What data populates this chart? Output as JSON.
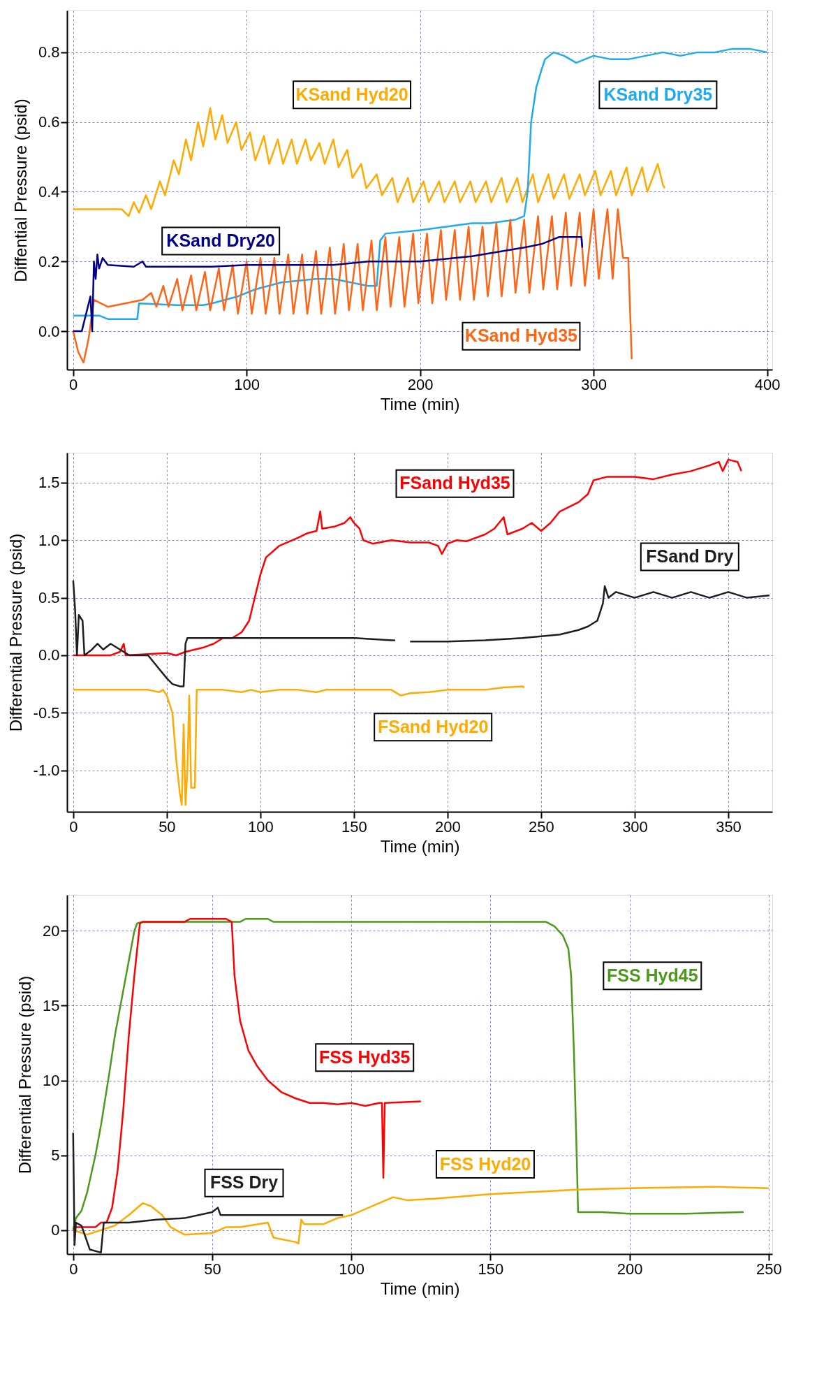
{
  "chart_data": [
    {
      "type": "line",
      "xlabel": "Time (min)",
      "ylabel": "Diffential Pressure (psid)",
      "xlim": [
        -3.5,
        403
      ],
      "xticks": [
        0,
        100,
        200,
        300,
        400
      ],
      "ylim": [
        -0.11,
        0.92
      ],
      "yticks": [
        {
          "value": 0,
          "label": "0.0"
        },
        0.2,
        0.4,
        0.6,
        0.8
      ],
      "grid": true,
      "series": [
        {
          "name": "KSand Hyd20",
          "color": "#ffaa00",
          "x": [
            0,
            10,
            20,
            28,
            32,
            35,
            38,
            42,
            45,
            50,
            53,
            58,
            61,
            65,
            68,
            72,
            75,
            79,
            82,
            86,
            89,
            94,
            97,
            102,
            105,
            110,
            113,
            118,
            121,
            126,
            129,
            134,
            137,
            142,
            145,
            150,
            153,
            158,
            161,
            166,
            169,
            175,
            178,
            184,
            187,
            193,
            196,
            202,
            205,
            211,
            214,
            220,
            223,
            229,
            232,
            238,
            241,
            247,
            250,
            256,
            259,
            265,
            268,
            274,
            277,
            283,
            286,
            292,
            295,
            301,
            304,
            310,
            313,
            319,
            322,
            328,
            331,
            337,
            340,
            341
          ],
          "values": [
            0.35,
            0.35,
            0.35,
            0.35,
            0.33,
            0.37,
            0.34,
            0.39,
            0.35,
            0.43,
            0.39,
            0.49,
            0.45,
            0.55,
            0.49,
            0.6,
            0.53,
            0.64,
            0.55,
            0.62,
            0.54,
            0.6,
            0.52,
            0.57,
            0.49,
            0.56,
            0.48,
            0.55,
            0.48,
            0.55,
            0.48,
            0.55,
            0.49,
            0.54,
            0.48,
            0.55,
            0.47,
            0.52,
            0.44,
            0.48,
            0.41,
            0.45,
            0.39,
            0.44,
            0.37,
            0.44,
            0.37,
            0.43,
            0.37,
            0.43,
            0.37,
            0.43,
            0.37,
            0.43,
            0.37,
            0.43,
            0.37,
            0.44,
            0.37,
            0.44,
            0.37,
            0.45,
            0.37,
            0.45,
            0.38,
            0.45,
            0.38,
            0.45,
            0.39,
            0.46,
            0.39,
            0.46,
            0.39,
            0.47,
            0.39,
            0.47,
            0.4,
            0.48,
            0.42,
            0.41
          ]
        },
        {
          "name": "KSand Dry35",
          "color": "#1eaaf0",
          "x": [
            0,
            15,
            20,
            37,
            38,
            60,
            75,
            80,
            95,
            105,
            120,
            140,
            150,
            170,
            175,
            177,
            180,
            200,
            230,
            240,
            255,
            260,
            262,
            264,
            267,
            270,
            272,
            277,
            283,
            290,
            300,
            310,
            320,
            330,
            340,
            350,
            360,
            370,
            380,
            390,
            400
          ],
          "values": [
            0.045,
            0.045,
            0.035,
            0.035,
            0.08,
            0.075,
            0.075,
            0.08,
            0.1,
            0.12,
            0.14,
            0.15,
            0.15,
            0.13,
            0.13,
            0.26,
            0.28,
            0.29,
            0.31,
            0.31,
            0.32,
            0.33,
            0.4,
            0.6,
            0.7,
            0.75,
            0.78,
            0.8,
            0.79,
            0.77,
            0.79,
            0.78,
            0.78,
            0.79,
            0.8,
            0.79,
            0.8,
            0.8,
            0.81,
            0.81,
            0.8
          ]
        },
        {
          "name": "KSand Hyd35",
          "color": "#ff6414",
          "x": [
            0,
            3,
            6,
            9,
            12,
            20,
            30,
            40,
            45,
            48,
            52,
            55,
            60,
            63,
            68,
            71,
            76,
            79,
            84,
            87,
            92,
            95,
            100,
            103,
            108,
            111,
            116,
            119,
            124,
            127,
            132,
            135,
            140,
            143,
            148,
            151,
            156,
            159,
            164,
            167,
            172,
            175,
            180,
            183,
            188,
            191,
            196,
            199,
            204,
            207,
            212,
            215,
            220,
            223,
            228,
            231,
            236,
            239,
            244,
            247,
            252,
            255,
            260,
            263,
            268,
            271,
            276,
            279,
            284,
            287,
            292,
            295,
            300,
            303,
            308,
            311,
            314,
            317,
            320,
            322
          ],
          "values": [
            0,
            -0.06,
            -0.09,
            -0.02,
            0.09,
            0.07,
            0.08,
            0.09,
            0.11,
            0.07,
            0.13,
            0.07,
            0.15,
            0.06,
            0.16,
            0.06,
            0.17,
            0.06,
            0.18,
            0.06,
            0.19,
            0.05,
            0.2,
            0.05,
            0.21,
            0.05,
            0.21,
            0.05,
            0.22,
            0.05,
            0.22,
            0.05,
            0.23,
            0.05,
            0.24,
            0.05,
            0.25,
            0.06,
            0.25,
            0.06,
            0.26,
            0.06,
            0.27,
            0.07,
            0.27,
            0.07,
            0.28,
            0.08,
            0.28,
            0.08,
            0.29,
            0.09,
            0.29,
            0.09,
            0.3,
            0.09,
            0.3,
            0.1,
            0.31,
            0.1,
            0.32,
            0.11,
            0.32,
            0.11,
            0.33,
            0.12,
            0.33,
            0.12,
            0.34,
            0.13,
            0.34,
            0.13,
            0.35,
            0.15,
            0.35,
            0.15,
            0.35,
            0.21,
            0.21,
            -0.08
          ]
        },
        {
          "name": "KSand Dry20",
          "color": "#00008b",
          "x": [
            0,
            5,
            8,
            10,
            11,
            12,
            13,
            14,
            15,
            17,
            20,
            35,
            40,
            42,
            80,
            100,
            150,
            170,
            200,
            230,
            260,
            270,
            280,
            293,
            293.5
          ],
          "values": [
            0,
            0,
            0.06,
            0.1,
            0,
            0.2,
            0.15,
            0.22,
            0.18,
            0.21,
            0.19,
            0.185,
            0.2,
            0.185,
            0.185,
            0.19,
            0.19,
            0.2,
            0.2,
            0.215,
            0.24,
            0.25,
            0.27,
            0.27,
            0.24
          ]
        }
      ]
    },
    {
      "type": "line",
      "xlabel": "Time (min)",
      "ylabel": "Differential Pressure (psid)",
      "xlim": [
        -3.3,
        373.5
      ],
      "xticks": [
        0,
        50,
        100,
        150,
        200,
        250,
        300,
        350
      ],
      "ylim": [
        -1.36,
        1.76
      ],
      "yticks": [
        {
          "value": -1,
          "label": "-1.0"
        },
        -0.5,
        {
          "value": 0,
          "label": "0.0"
        },
        0.5,
        {
          "value": 1,
          "label": "1.0"
        },
        1.5
      ],
      "grid": true,
      "series": [
        {
          "name": "FSand Hyd35",
          "color": "#ff0000",
          "x": [
            0,
            20,
            25,
            27,
            28,
            40,
            50,
            55,
            60,
            65,
            70,
            75,
            80,
            85,
            90,
            94,
            97,
            100,
            103,
            110,
            120,
            125,
            130,
            132,
            133,
            140,
            145,
            148,
            150,
            153,
            155,
            160,
            170,
            180,
            190,
            195,
            197,
            200,
            205,
            210,
            220,
            225,
            230,
            232,
            240,
            245,
            250,
            255,
            260,
            270,
            275,
            278,
            285,
            290,
            300,
            310,
            320,
            330,
            340,
            345,
            347,
            350,
            355,
            357
          ],
          "values": [
            0,
            0,
            0.03,
            0.1,
            0,
            0.01,
            0.02,
            0,
            0.03,
            0.05,
            0.07,
            0.1,
            0.15,
            0.15,
            0.2,
            0.3,
            0.5,
            0.7,
            0.85,
            0.95,
            1.02,
            1.06,
            1.08,
            1.25,
            1.1,
            1.12,
            1.15,
            1.2,
            1.15,
            1.1,
            1.0,
            0.97,
            1.0,
            0.98,
            0.98,
            0.95,
            0.88,
            0.97,
            1.0,
            0.99,
            1.05,
            1.1,
            1.2,
            1.05,
            1.1,
            1.15,
            1.08,
            1.15,
            1.25,
            1.33,
            1.4,
            1.52,
            1.55,
            1.55,
            1.55,
            1.53,
            1.57,
            1.6,
            1.65,
            1.68,
            1.6,
            1.7,
            1.68,
            1.6
          ]
        },
        {
          "name": "FSand Dry",
          "color": "#1e1e1e",
          "x": [
            0,
            1,
            2,
            3,
            5,
            6,
            10,
            13,
            16,
            20,
            25,
            30,
            40,
            45,
            50,
            53,
            57,
            59,
            60,
            61,
            100,
            150,
            170,
            172,
            176,
            180,
            200,
            220,
            240,
            260,
            270,
            275,
            280,
            283,
            284,
            286,
            290,
            300,
            310,
            320,
            330,
            340,
            350,
            360,
            372
          ],
          "values": [
            0.65,
            0.4,
            0,
            0.35,
            0.3,
            0,
            0.05,
            0.1,
            0.05,
            0.1,
            0.05,
            0,
            0,
            -0.1,
            -0.2,
            -0.25,
            -0.27,
            -0.27,
            0.1,
            0.15,
            0.15,
            0.15,
            0.13,
            0.13,
            null,
            0.12,
            0.12,
            0.13,
            0.15,
            0.18,
            0.22,
            0.25,
            0.3,
            0.45,
            0.6,
            0.5,
            0.55,
            0.5,
            0.55,
            0.5,
            0.55,
            0.5,
            0.55,
            0.5,
            0.52
          ]
        },
        {
          "name": "FSand Hyd20",
          "color": "#ffaa00",
          "x": [
            0,
            25,
            30,
            40,
            46,
            48,
            50,
            53,
            55,
            57,
            58,
            59,
            60,
            61,
            62,
            63,
            65,
            66,
            70,
            80,
            90,
            95,
            100,
            110,
            120,
            130,
            135,
            140,
            150,
            160,
            170,
            175,
            180,
            190,
            200,
            210,
            220,
            230,
            240,
            241
          ],
          "values": [
            -0.3,
            -0.3,
            -0.3,
            -0.3,
            -0.32,
            -0.3,
            -0.35,
            -0.5,
            -0.9,
            -1.2,
            -1.3,
            -0.6,
            -1.3,
            -1.0,
            -0.35,
            -1.15,
            -1.15,
            -0.3,
            -0.3,
            -0.3,
            -0.32,
            -0.3,
            -0.32,
            -0.3,
            -0.3,
            -0.32,
            -0.3,
            -0.3,
            -0.3,
            -0.3,
            -0.3,
            -0.35,
            -0.33,
            -0.32,
            -0.3,
            -0.3,
            -0.3,
            -0.28,
            -0.27,
            -0.28
          ]
        }
      ]
    },
    {
      "type": "line",
      "xlabel": "Time (min)",
      "ylabel": "Differential Pressure (psid)",
      "xlim": [
        -2.2,
        251.3
      ],
      "xticks": [
        0,
        50,
        100,
        150,
        200,
        250
      ],
      "ylim": [
        -1.6,
        22.4
      ],
      "yticks": [
        0,
        5,
        10,
        15,
        20
      ],
      "grid": true,
      "series": [
        {
          "name": "FSS Hyd45",
          "color": "#4c9a1a",
          "x": [
            0,
            1,
            3,
            5,
            8,
            10,
            13,
            15,
            18,
            20,
            22,
            23,
            25,
            50,
            60,
            62,
            70,
            72,
            100,
            150,
            170,
            173,
            176,
            178,
            179,
            180,
            181,
            181.5,
            190,
            200,
            220,
            240,
            241
          ],
          "values": [
            0,
            0.8,
            1.3,
            2.5,
            5,
            7,
            10.5,
            13,
            16,
            18,
            20,
            20.5,
            20.6,
            20.6,
            20.6,
            20.8,
            20.8,
            20.6,
            20.6,
            20.6,
            20.6,
            20.3,
            19.7,
            18.8,
            17,
            12,
            5,
            1.2,
            1.2,
            1.1,
            1.1,
            1.2,
            1.2
          ]
        },
        {
          "name": "FSS Hyd35",
          "color": "#ff0000",
          "x": [
            0,
            8,
            10,
            12,
            14,
            16,
            18,
            20,
            22,
            24,
            25,
            40,
            42,
            55,
            57,
            58,
            60,
            63,
            66,
            70,
            75,
            80,
            85,
            90,
            95,
            100,
            105,
            110,
            111,
            111.5,
            112,
            125
          ],
          "values": [
            0.2,
            0.2,
            0.5,
            0.5,
            1.5,
            4,
            8,
            13,
            17,
            20.5,
            20.6,
            20.6,
            20.8,
            20.8,
            20.6,
            17,
            14,
            12,
            11,
            10,
            9.2,
            8.8,
            8.5,
            8.5,
            8.4,
            8.5,
            8.3,
            8.5,
            8.5,
            3.5,
            8.5,
            8.6
          ]
        },
        {
          "name": "FSS Hyd20",
          "color": "#ffaa00",
          "x": [
            0,
            5,
            10,
            15,
            20,
            25,
            28,
            32,
            35,
            40,
            50,
            55,
            60,
            70,
            72,
            80,
            81,
            82,
            83,
            90,
            95,
            100,
            110,
            115,
            120,
            130,
            150,
            180,
            200,
            230,
            250
          ],
          "values": [
            0,
            -0.3,
            0,
            0.3,
            1,
            1.8,
            1.6,
            1,
            0.2,
            -0.3,
            -0.2,
            0.2,
            0.2,
            0.5,
            -0.5,
            -0.8,
            -0.9,
            0.7,
            0.4,
            0.4,
            0.8,
            1,
            1.8,
            2.2,
            2,
            2.1,
            2.4,
            2.7,
            2.8,
            2.9,
            2.8
          ]
        },
        {
          "name": "FSS Dry",
          "color": "#1e1e1e",
          "x": [
            0,
            0.5,
            1,
            3,
            6,
            10,
            11,
            20,
            30,
            40,
            50,
            52,
            53,
            60,
            80,
            97
          ],
          "values": [
            6.5,
            -1,
            0.5,
            0.3,
            -1.3,
            -1.5,
            0.5,
            0.5,
            0.7,
            0.8,
            1.2,
            1.5,
            1.0,
            1.0,
            1.0,
            1.0
          ]
        }
      ]
    }
  ]
}
